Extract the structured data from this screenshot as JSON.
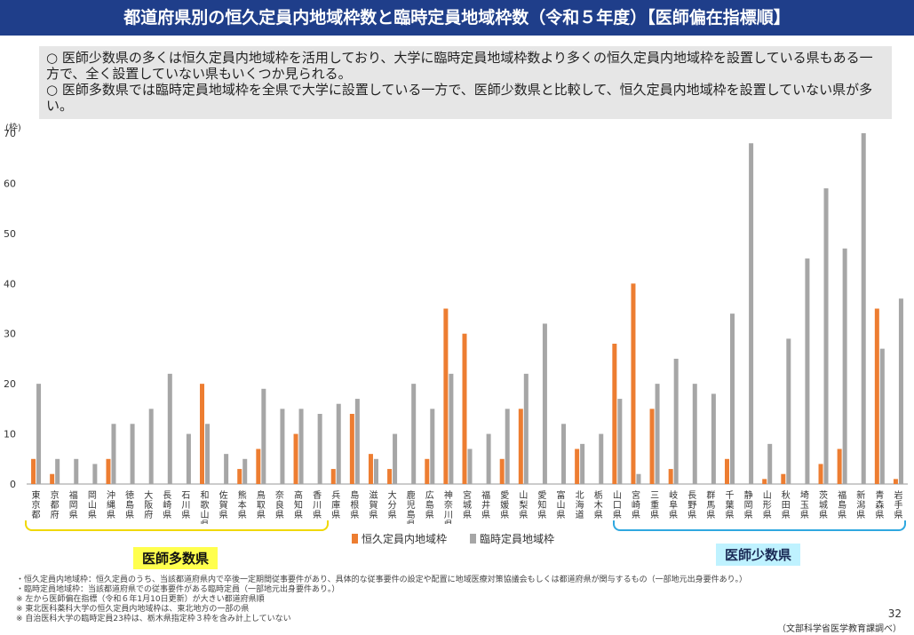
{
  "title": "都道府県別の恒久定員内地域枠数と臨時定員地域枠数（令和５年度）【医師偏在指標順】",
  "summary": [
    "○ 医師少数県の多くは恒久定員内地域枠を活用しており、大学に臨時定員地域枠数より多くの恒久定員内地域枠を設置している県もある一方で、全く設置していない県もいくつか見られる。",
    "○ 医師多数県では臨時定員地域枠を全県で大学に設置している一方で、医師少数県と比較して、恒久定員内地域枠を設置していない県が多い。"
  ],
  "colors": {
    "permanent": "#ed7d31",
    "temporary": "#a6a6a6",
    "title_bg": "#1f3e8a"
  },
  "chart_data": {
    "type": "bar",
    "title": "",
    "ylabel": "(枠)",
    "ylim": [
      0,
      70
    ],
    "yticks": [
      0,
      10,
      20,
      30,
      40,
      50,
      60,
      70
    ],
    "grid": false,
    "categories": [
      "東京都",
      "京都府",
      "福岡県",
      "岡山県",
      "沖縄県",
      "徳島県",
      "大阪府",
      "長崎県",
      "石川県",
      "和歌山県",
      "佐賀県",
      "熊本県",
      "鳥取県",
      "奈良県",
      "高知県",
      "香川県",
      "兵庫県",
      "島根県",
      "滋賀県",
      "大分県",
      "鹿児島県",
      "広島県",
      "神奈川県",
      "宮城県",
      "福井県",
      "愛媛県",
      "山梨県",
      "愛知県",
      "富山県",
      "北海道",
      "栃木県",
      "山口県",
      "宮崎県",
      "三重県",
      "岐阜県",
      "長野県",
      "群馬県",
      "千葉県",
      "静岡県",
      "山形県",
      "秋田県",
      "埼玉県",
      "茨城県",
      "福島県",
      "新潟県",
      "青森県",
      "岩手県"
    ],
    "series": [
      {
        "name": "恒久定員内地域枠",
        "values": [
          5,
          2,
          0,
          0,
          5,
          0,
          0,
          0,
          0,
          20,
          0,
          3,
          7,
          0,
          10,
          0,
          3,
          14,
          6,
          3,
          0,
          5,
          35,
          30,
          0,
          5,
          15,
          0,
          0,
          7,
          0,
          28,
          40,
          15,
          3,
          0,
          0,
          5,
          0,
          1,
          2,
          0,
          4,
          7,
          0,
          35,
          1
        ]
      },
      {
        "name": "臨時定員地域枠",
        "values": [
          20,
          5,
          5,
          4,
          12,
          12,
          15,
          22,
          10,
          12,
          6,
          5,
          19,
          15,
          15,
          14,
          16,
          17,
          5,
          10,
          20,
          15,
          22,
          7,
          10,
          15,
          22,
          32,
          12,
          8,
          10,
          17,
          2,
          20,
          25,
          20,
          18,
          34,
          68,
          8,
          29,
          45,
          59,
          47,
          70,
          27,
          37
        ]
      }
    ],
    "groups": {
      "many": "医師多数県",
      "few": "医師少数県"
    }
  },
  "notes": [
    "・恒久定員内地域枠：恒久定員のうち、当該都道府県内で卒後一定期間従事要件があり、具体的な従事要件の設定や配置に地域医療対策協議会もしくは都道府県が関与するもの（一部地元出身要件あり。）",
    "・臨時定員地域枠：当該都道府県での従事要件がある臨時定員（一部地元出身要件あり。）",
    "※ 左から医師偏在指標（令和６年1月10日更新）が大きい都道府県順",
    "※ 東北医科薬科大学の恒久定員内地域枠は、東北地方の一部の県",
    "※ 自治医科大学の臨時定員23枠は、栃木県指定枠３枠を含み計上していない"
  ],
  "page_number": "32",
  "source": "（文部科学省医学教育課調べ）"
}
